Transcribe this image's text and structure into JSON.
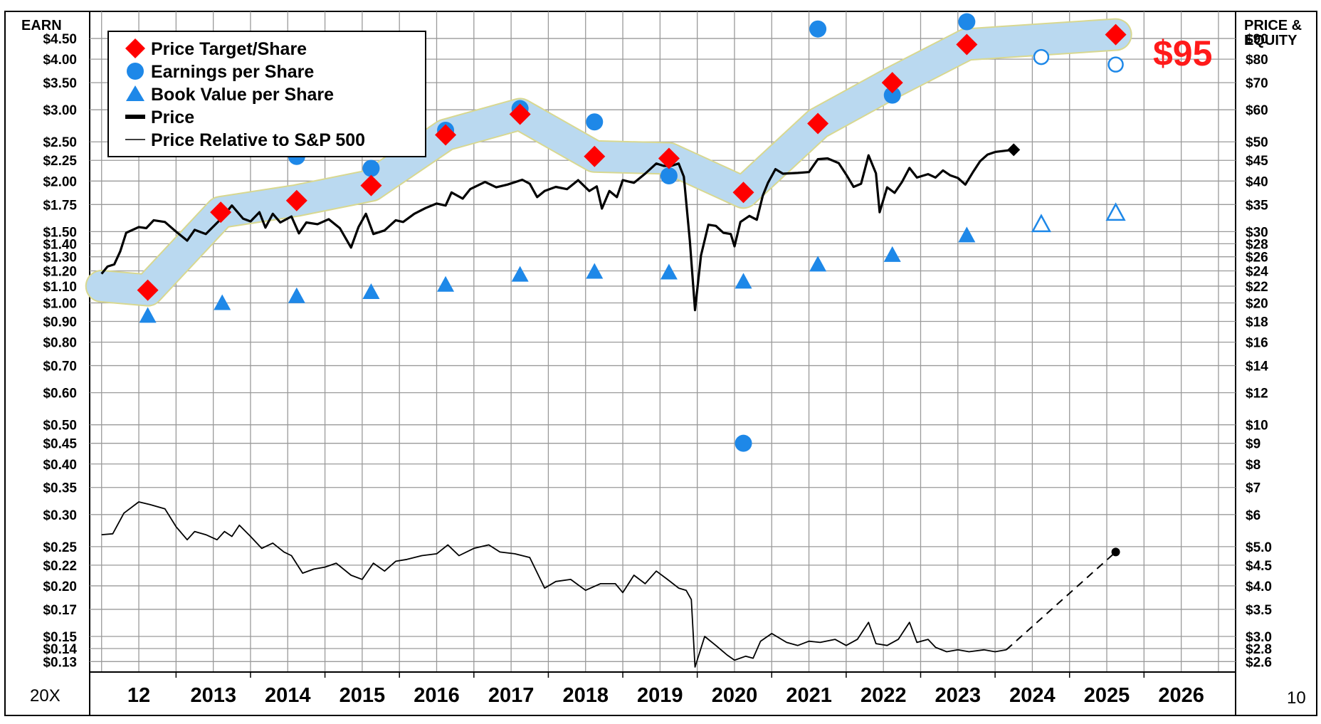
{
  "chart_data": {
    "type": "line",
    "left_axis_title": "EARN",
    "right_axis_title_line1": "PRICE &",
    "right_axis_title_line2": "EQUITY",
    "corner_left": "20X",
    "corner_right": "10",
    "target_label": "$95",
    "colors": {
      "band_fill": "#b8d9f5",
      "band_edge": "#d8d890",
      "target": "#ff0000",
      "earnings": "#1e88e8",
      "book": "#1e88e8",
      "price": "#000000",
      "grid": "#9a9a9a"
    },
    "x_labels": [
      {
        "label": "12",
        "x": 2012.5
      },
      {
        "label": "2013",
        "x": 2013.5
      },
      {
        "label": "2014",
        "x": 2014.5
      },
      {
        "label": "2015",
        "x": 2015.5
      },
      {
        "label": "2016",
        "x": 2016.5
      },
      {
        "label": "2017",
        "x": 2017.5
      },
      {
        "label": "2018",
        "x": 2018.5
      },
      {
        "label": "2019",
        "x": 2019.5
      },
      {
        "label": "2020",
        "x": 2020.5
      },
      {
        "label": "2021",
        "x": 2021.5
      },
      {
        "label": "2022",
        "x": 2022.5
      },
      {
        "label": "2023",
        "x": 2023.5
      },
      {
        "label": "2024",
        "x": 2024.5
      },
      {
        "label": "2025",
        "x": 2025.5
      },
      {
        "label": "2026",
        "x": 2026.5
      }
    ],
    "left_ticks": [
      {
        "label": "$4.50",
        "value": 90
      },
      {
        "label": "$4.00",
        "value": 80
      },
      {
        "label": "$3.50",
        "value": 70
      },
      {
        "label": "$3.00",
        "value": 60
      },
      {
        "label": "$2.50",
        "value": 50
      },
      {
        "label": "$2.25",
        "value": 45
      },
      {
        "label": "$2.00",
        "value": 40
      },
      {
        "label": "$1.75",
        "value": 35
      },
      {
        "label": "$1.50",
        "value": 30
      },
      {
        "label": "$1.40",
        "value": 28
      },
      {
        "label": "$1.30",
        "value": 26
      },
      {
        "label": "$1.20",
        "value": 24
      },
      {
        "label": "$1.10",
        "value": 22
      },
      {
        "label": "$1.00",
        "value": 20
      },
      {
        "label": "$0.90",
        "value": 18
      },
      {
        "label": "$0.80",
        "value": 16
      },
      {
        "label": "$0.70",
        "value": 14
      },
      {
        "label": "$0.60",
        "value": 12
      },
      {
        "label": "$0.50",
        "value": 10
      },
      {
        "label": "$0.45",
        "value": 9
      },
      {
        "label": "$0.40",
        "value": 8
      },
      {
        "label": "$0.35",
        "value": 7
      },
      {
        "label": "$0.30",
        "value": 6
      },
      {
        "label": "$0.25",
        "value": 5
      },
      {
        "label": "$0.22",
        "value": 4.5
      },
      {
        "label": "$0.20",
        "value": 4
      },
      {
        "label": "$0.17",
        "value": 3.5
      },
      {
        "label": "$0.15",
        "value": 3
      },
      {
        "label": "$0.14",
        "value": 2.8
      },
      {
        "label": "$0.13",
        "value": 2.6
      }
    ],
    "right_ticks": [
      {
        "label": "$90",
        "value": 90
      },
      {
        "label": "$80",
        "value": 80
      },
      {
        "label": "$70",
        "value": 70
      },
      {
        "label": "$60",
        "value": 60
      },
      {
        "label": "$50",
        "value": 50
      },
      {
        "label": "$45",
        "value": 45
      },
      {
        "label": "$40",
        "value": 40
      },
      {
        "label": "$35",
        "value": 35
      },
      {
        "label": "$30",
        "value": 30
      },
      {
        "label": "$28",
        "value": 28
      },
      {
        "label": "$26",
        "value": 26
      },
      {
        "label": "$24",
        "value": 24
      },
      {
        "label": "$22",
        "value": 22
      },
      {
        "label": "$20",
        "value": 20
      },
      {
        "label": "$18",
        "value": 18
      },
      {
        "label": "$16",
        "value": 16
      },
      {
        "label": "$14",
        "value": 14
      },
      {
        "label": "$12",
        "value": 12
      },
      {
        "label": "$10",
        "value": 10
      },
      {
        "label": "$9",
        "value": 9
      },
      {
        "label": "$8",
        "value": 8
      },
      {
        "label": "$7",
        "value": 7
      },
      {
        "label": "$6",
        "value": 6
      },
      {
        "label": "$5.0",
        "value": 5
      },
      {
        "label": "$4.5",
        "value": 4.5
      },
      {
        "label": "$4.0",
        "value": 4
      },
      {
        "label": "$3.5",
        "value": 3.5
      },
      {
        "label": "$3.0",
        "value": 3
      },
      {
        "label": "$2.8",
        "value": 2.8
      },
      {
        "label": "$2.6",
        "value": 2.6
      }
    ],
    "legend": [
      {
        "label": "Price Target/Share",
        "marker": "diamond"
      },
      {
        "label": "Earnings per Share",
        "marker": "circle"
      },
      {
        "label": "Book Value per Share",
        "marker": "triangle"
      },
      {
        "label": "Price",
        "marker": "thick-line"
      },
      {
        "label": "Price Relative to S&P 500",
        "marker": "thin-line"
      }
    ],
    "band": [
      {
        "x": 2012.0,
        "y": 22
      },
      {
        "x": 2012.62,
        "y": 21.5
      },
      {
        "x": 2013.6,
        "y": 33.5
      },
      {
        "x": 2014.62,
        "y": 35.8
      },
      {
        "x": 2015.62,
        "y": 39
      },
      {
        "x": 2016.62,
        "y": 52
      },
      {
        "x": 2017.62,
        "y": 58.5
      },
      {
        "x": 2018.62,
        "y": 46
      },
      {
        "x": 2019.62,
        "y": 45.5
      },
      {
        "x": 2020.62,
        "y": 37.5
      },
      {
        "x": 2021.62,
        "y": 55.5
      },
      {
        "x": 2022.62,
        "y": 70
      },
      {
        "x": 2023.62,
        "y": 87
      },
      {
        "x": 2025.62,
        "y": 92
      }
    ],
    "price_target": [
      {
        "x": 2012.62,
        "y": 21.5
      },
      {
        "x": 2013.6,
        "y": 33.5
      },
      {
        "x": 2014.62,
        "y": 35.8
      },
      {
        "x": 2015.62,
        "y": 39
      },
      {
        "x": 2016.62,
        "y": 52
      },
      {
        "x": 2017.62,
        "y": 58.5
      },
      {
        "x": 2018.62,
        "y": 46
      },
      {
        "x": 2019.62,
        "y": 45.5
      },
      {
        "x": 2020.62,
        "y": 37.5
      },
      {
        "x": 2021.62,
        "y": 55.5
      },
      {
        "x": 2022.62,
        "y": 70
      },
      {
        "x": 2023.62,
        "y": 87
      },
      {
        "x": 2025.62,
        "y": 92
      }
    ],
    "eps": [
      {
        "x": 2014.62,
        "y": 2.3
      },
      {
        "x": 2015.62,
        "y": 2.15
      },
      {
        "x": 2016.62,
        "y": 2.67
      },
      {
        "x": 2017.62,
        "y": 3.02
      },
      {
        "x": 2018.62,
        "y": 2.8
      },
      {
        "x": 2019.62,
        "y": 2.06
      },
      {
        "x": 2020.62,
        "y": 0.45
      },
      {
        "x": 2021.62,
        "y": 4.75
      },
      {
        "x": 2022.62,
        "y": 3.26
      },
      {
        "x": 2023.62,
        "y": 4.95
      },
      {
        "x": 2024.62,
        "y": 4.05,
        "estimate": true
      },
      {
        "x": 2025.62,
        "y": 3.88,
        "estimate": true
      }
    ],
    "book_value": [
      {
        "x": 2012.62,
        "y": 18.6
      },
      {
        "x": 2013.62,
        "y": 20
      },
      {
        "x": 2014.62,
        "y": 20.8
      },
      {
        "x": 2015.62,
        "y": 21.3
      },
      {
        "x": 2016.62,
        "y": 22.2
      },
      {
        "x": 2017.62,
        "y": 23.5
      },
      {
        "x": 2018.62,
        "y": 23.9
      },
      {
        "x": 2019.62,
        "y": 23.8
      },
      {
        "x": 2020.62,
        "y": 22.6
      },
      {
        "x": 2021.62,
        "y": 24.9
      },
      {
        "x": 2022.62,
        "y": 26.3
      },
      {
        "x": 2023.62,
        "y": 29.4
      },
      {
        "x": 2024.62,
        "y": 31.3,
        "estimate": true
      },
      {
        "x": 2025.62,
        "y": 33.4,
        "estimate": true
      }
    ],
    "price": [
      {
        "x": 2012.0,
        "y": 23.6
      },
      {
        "x": 2012.08,
        "y": 24.6
      },
      {
        "x": 2012.17,
        "y": 24.9
      },
      {
        "x": 2012.25,
        "y": 26.8
      },
      {
        "x": 2012.33,
        "y": 29.8
      },
      {
        "x": 2012.5,
        "y": 30.8
      },
      {
        "x": 2012.6,
        "y": 30.6
      },
      {
        "x": 2012.7,
        "y": 32
      },
      {
        "x": 2012.85,
        "y": 31.7
      },
      {
        "x": 2013.0,
        "y": 30
      },
      {
        "x": 2013.15,
        "y": 28.5
      },
      {
        "x": 2013.25,
        "y": 30.3
      },
      {
        "x": 2013.4,
        "y": 29.6
      },
      {
        "x": 2013.6,
        "y": 32.2
      },
      {
        "x": 2013.75,
        "y": 34.8
      },
      {
        "x": 2013.9,
        "y": 32.3
      },
      {
        "x": 2014.0,
        "y": 31.8
      },
      {
        "x": 2014.12,
        "y": 33.5
      },
      {
        "x": 2014.2,
        "y": 30.7
      },
      {
        "x": 2014.3,
        "y": 33.2
      },
      {
        "x": 2014.4,
        "y": 31.6
      },
      {
        "x": 2014.55,
        "y": 32.7
      },
      {
        "x": 2014.65,
        "y": 29.7
      },
      {
        "x": 2014.75,
        "y": 31.6
      },
      {
        "x": 2014.9,
        "y": 31.3
      },
      {
        "x": 2015.05,
        "y": 32.2
      },
      {
        "x": 2015.2,
        "y": 30.6
      },
      {
        "x": 2015.35,
        "y": 27.4
      },
      {
        "x": 2015.45,
        "y": 30.8
      },
      {
        "x": 2015.55,
        "y": 33.2
      },
      {
        "x": 2015.65,
        "y": 29.6
      },
      {
        "x": 2015.8,
        "y": 30.2
      },
      {
        "x": 2015.95,
        "y": 32
      },
      {
        "x": 2016.05,
        "y": 31.7
      },
      {
        "x": 2016.2,
        "y": 33.2
      },
      {
        "x": 2016.35,
        "y": 34.3
      },
      {
        "x": 2016.5,
        "y": 35.2
      },
      {
        "x": 2016.62,
        "y": 34.8
      },
      {
        "x": 2016.7,
        "y": 37.5
      },
      {
        "x": 2016.85,
        "y": 36.2
      },
      {
        "x": 2016.95,
        "y": 38.2
      },
      {
        "x": 2017.15,
        "y": 39.8
      },
      {
        "x": 2017.3,
        "y": 38.6
      },
      {
        "x": 2017.45,
        "y": 39.2
      },
      {
        "x": 2017.65,
        "y": 40.3
      },
      {
        "x": 2017.75,
        "y": 39.4
      },
      {
        "x": 2017.85,
        "y": 36.5
      },
      {
        "x": 2017.95,
        "y": 37.8
      },
      {
        "x": 2018.1,
        "y": 38.7
      },
      {
        "x": 2018.25,
        "y": 38.2
      },
      {
        "x": 2018.4,
        "y": 40.2
      },
      {
        "x": 2018.55,
        "y": 37.8
      },
      {
        "x": 2018.65,
        "y": 38.8
      },
      {
        "x": 2018.72,
        "y": 34.2
      },
      {
        "x": 2018.82,
        "y": 37.8
      },
      {
        "x": 2018.92,
        "y": 36.5
      },
      {
        "x": 2019.0,
        "y": 40.2
      },
      {
        "x": 2019.15,
        "y": 39.6
      },
      {
        "x": 2019.3,
        "y": 41.7
      },
      {
        "x": 2019.45,
        "y": 44.2
      },
      {
        "x": 2019.55,
        "y": 43.6
      },
      {
        "x": 2019.65,
        "y": 43.6
      },
      {
        "x": 2019.75,
        "y": 44.2
      },
      {
        "x": 2019.82,
        "y": 41
      },
      {
        "x": 2019.9,
        "y": 28.5
      },
      {
        "x": 2019.97,
        "y": 19.2
      },
      {
        "x": 2020.05,
        "y": 26.2
      },
      {
        "x": 2020.15,
        "y": 31.2
      },
      {
        "x": 2020.25,
        "y": 31
      },
      {
        "x": 2020.35,
        "y": 29.8
      },
      {
        "x": 2020.45,
        "y": 29.6
      },
      {
        "x": 2020.5,
        "y": 27.6
      },
      {
        "x": 2020.58,
        "y": 31.7
      },
      {
        "x": 2020.7,
        "y": 32.8
      },
      {
        "x": 2020.8,
        "y": 32.1
      },
      {
        "x": 2020.88,
        "y": 36.8
      },
      {
        "x": 2020.95,
        "y": 39.6
      },
      {
        "x": 2021.05,
        "y": 42.8
      },
      {
        "x": 2021.15,
        "y": 41.7
      },
      {
        "x": 2021.35,
        "y": 41.9
      },
      {
        "x": 2021.5,
        "y": 42.1
      },
      {
        "x": 2021.62,
        "y": 45.3
      },
      {
        "x": 2021.75,
        "y": 45.5
      },
      {
        "x": 2021.9,
        "y": 44.3
      },
      {
        "x": 2022.0,
        "y": 41.5
      },
      {
        "x": 2022.1,
        "y": 38.7
      },
      {
        "x": 2022.2,
        "y": 39.4
      },
      {
        "x": 2022.3,
        "y": 46.3
      },
      {
        "x": 2022.4,
        "y": 41.8
      },
      {
        "x": 2022.45,
        "y": 33.5
      },
      {
        "x": 2022.55,
        "y": 38.6
      },
      {
        "x": 2022.65,
        "y": 37.4
      },
      {
        "x": 2022.75,
        "y": 39.8
      },
      {
        "x": 2022.85,
        "y": 43.1
      },
      {
        "x": 2022.95,
        "y": 40.8
      },
      {
        "x": 2023.1,
        "y": 41.6
      },
      {
        "x": 2023.2,
        "y": 40.8
      },
      {
        "x": 2023.3,
        "y": 42.5
      },
      {
        "x": 2023.4,
        "y": 41.3
      },
      {
        "x": 2023.5,
        "y": 40.7
      },
      {
        "x": 2023.6,
        "y": 39.2
      },
      {
        "x": 2023.7,
        "y": 42
      },
      {
        "x": 2023.8,
        "y": 44.8
      },
      {
        "x": 2023.9,
        "y": 46.5
      },
      {
        "x": 2024.0,
        "y": 47.2
      }
    ],
    "price_last": {
      "x": 2024.25,
      "y": 47.8
    },
    "relative": [
      {
        "x": 2012.0,
        "y": 5.35
      },
      {
        "x": 2012.15,
        "y": 5.38
      },
      {
        "x": 2012.3,
        "y": 6.05
      },
      {
        "x": 2012.5,
        "y": 6.45
      },
      {
        "x": 2012.65,
        "y": 6.35
      },
      {
        "x": 2012.85,
        "y": 6.2
      },
      {
        "x": 2013.0,
        "y": 5.6
      },
      {
        "x": 2013.15,
        "y": 5.2
      },
      {
        "x": 2013.25,
        "y": 5.45
      },
      {
        "x": 2013.4,
        "y": 5.35
      },
      {
        "x": 2013.55,
        "y": 5.2
      },
      {
        "x": 2013.65,
        "y": 5.45
      },
      {
        "x": 2013.75,
        "y": 5.3
      },
      {
        "x": 2013.85,
        "y": 5.65
      },
      {
        "x": 2014.0,
        "y": 5.3
      },
      {
        "x": 2014.15,
        "y": 4.95
      },
      {
        "x": 2014.3,
        "y": 5.1
      },
      {
        "x": 2014.45,
        "y": 4.85
      },
      {
        "x": 2014.55,
        "y": 4.75
      },
      {
        "x": 2014.7,
        "y": 4.3
      },
      {
        "x": 2014.85,
        "y": 4.4
      },
      {
        "x": 2015.0,
        "y": 4.45
      },
      {
        "x": 2015.15,
        "y": 4.55
      },
      {
        "x": 2015.35,
        "y": 4.25
      },
      {
        "x": 2015.5,
        "y": 4.15
      },
      {
        "x": 2015.65,
        "y": 4.55
      },
      {
        "x": 2015.8,
        "y": 4.35
      },
      {
        "x": 2015.95,
        "y": 4.6
      },
      {
        "x": 2016.1,
        "y": 4.65
      },
      {
        "x": 2016.3,
        "y": 4.75
      },
      {
        "x": 2016.5,
        "y": 4.8
      },
      {
        "x": 2016.65,
        "y": 5.05
      },
      {
        "x": 2016.8,
        "y": 4.75
      },
      {
        "x": 2017.0,
        "y": 4.95
      },
      {
        "x": 2017.2,
        "y": 5.05
      },
      {
        "x": 2017.35,
        "y": 4.85
      },
      {
        "x": 2017.55,
        "y": 4.8
      },
      {
        "x": 2017.75,
        "y": 4.7
      },
      {
        "x": 2017.95,
        "y": 3.95
      },
      {
        "x": 2018.1,
        "y": 4.1
      },
      {
        "x": 2018.3,
        "y": 4.15
      },
      {
        "x": 2018.5,
        "y": 3.9
      },
      {
        "x": 2018.7,
        "y": 4.05
      },
      {
        "x": 2018.9,
        "y": 4.05
      },
      {
        "x": 2019.0,
        "y": 3.85
      },
      {
        "x": 2019.15,
        "y": 4.25
      },
      {
        "x": 2019.3,
        "y": 4.05
      },
      {
        "x": 2019.45,
        "y": 4.35
      },
      {
        "x": 2019.6,
        "y": 4.15
      },
      {
        "x": 2019.75,
        "y": 3.95
      },
      {
        "x": 2019.85,
        "y": 3.9
      },
      {
        "x": 2019.92,
        "y": 3.7
      },
      {
        "x": 2019.97,
        "y": 2.52
      },
      {
        "x": 2020.1,
        "y": 3.0
      },
      {
        "x": 2020.25,
        "y": 2.85
      },
      {
        "x": 2020.4,
        "y": 2.7
      },
      {
        "x": 2020.5,
        "y": 2.62
      },
      {
        "x": 2020.65,
        "y": 2.68
      },
      {
        "x": 2020.75,
        "y": 2.65
      },
      {
        "x": 2020.85,
        "y": 2.92
      },
      {
        "x": 2021.0,
        "y": 3.05
      },
      {
        "x": 2021.2,
        "y": 2.9
      },
      {
        "x": 2021.35,
        "y": 2.85
      },
      {
        "x": 2021.5,
        "y": 2.92
      },
      {
        "x": 2021.65,
        "y": 2.9
      },
      {
        "x": 2021.85,
        "y": 2.95
      },
      {
        "x": 2022.0,
        "y": 2.85
      },
      {
        "x": 2022.15,
        "y": 2.95
      },
      {
        "x": 2022.3,
        "y": 3.25
      },
      {
        "x": 2022.4,
        "y": 2.88
      },
      {
        "x": 2022.55,
        "y": 2.85
      },
      {
        "x": 2022.7,
        "y": 2.95
      },
      {
        "x": 2022.85,
        "y": 3.25
      },
      {
        "x": 2022.95,
        "y": 2.9
      },
      {
        "x": 2023.1,
        "y": 2.95
      },
      {
        "x": 2023.2,
        "y": 2.82
      },
      {
        "x": 2023.35,
        "y": 2.75
      },
      {
        "x": 2023.5,
        "y": 2.78
      },
      {
        "x": 2023.65,
        "y": 2.75
      },
      {
        "x": 2023.85,
        "y": 2.78
      },
      {
        "x": 2024.0,
        "y": 2.75
      },
      {
        "x": 2024.15,
        "y": 2.78
      }
    ],
    "relative_projection": [
      {
        "x": 2024.15,
        "y": 2.78
      },
      {
        "x": 2025.62,
        "y": 4.85
      }
    ],
    "x_range": [
      2011.84,
      2027.23
    ],
    "y_range_log": [
      2.45,
      105
    ]
  }
}
